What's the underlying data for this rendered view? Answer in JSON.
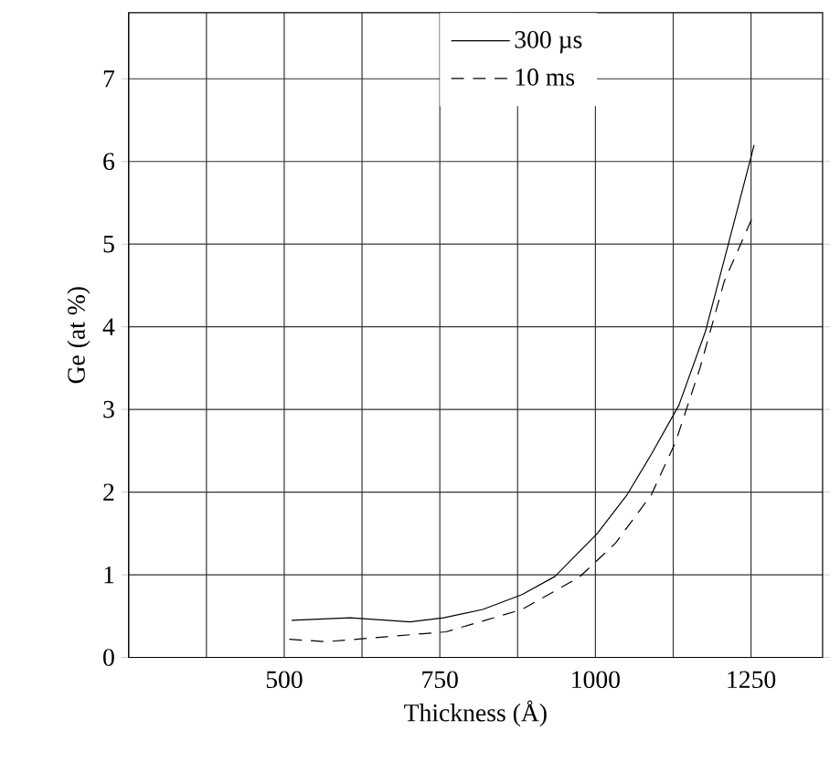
{
  "chart_data": {
    "type": "line",
    "xlabel": "Thickness (Å)",
    "ylabel": "Ge (at %)",
    "xlim": [
      250,
      1365
    ],
    "ylim": [
      0,
      7.8
    ],
    "annotations": [
      "0"
    ],
    "xticks": [
      {
        "value": 250,
        "label": null
      },
      {
        "value": 375,
        "label": null
      },
      500,
      {
        "value": 625,
        "label": null
      },
      750,
      {
        "value": 875,
        "label": null
      },
      1000,
      {
        "value": 1125,
        "label": null
      },
      1250
    ],
    "yticks": [
      0,
      1,
      2,
      3,
      4,
      5,
      6,
      7
    ],
    "grid": true,
    "legend": "top",
    "marker": "none",
    "series": [
      {
        "name": "300 µs",
        "color": "#000000",
        "line_style": "solid",
        "x": [
          512,
          606,
          644,
          702,
          756,
          819,
          882,
          935,
          1003,
          1051,
          1090,
          1134,
          1177,
          1216,
          1255
        ],
        "values": [
          0.45,
          0.48,
          0.46,
          0.43,
          0.48,
          0.58,
          0.76,
          0.98,
          1.5,
          1.97,
          2.46,
          3.05,
          3.95,
          5.07,
          6.2
        ]
      },
      {
        "name": "10 ms",
        "color": "#000000",
        "line_style": "dashed",
        "x": [
          508,
          567,
          664,
          760,
          882,
          974,
          1032,
          1090,
          1129,
          1168,
          1207,
          1255
        ],
        "values": [
          0.22,
          0.19,
          0.25,
          0.31,
          0.58,
          0.97,
          1.38,
          1.97,
          2.61,
          3.5,
          4.55,
          5.37
        ]
      }
    ]
  }
}
